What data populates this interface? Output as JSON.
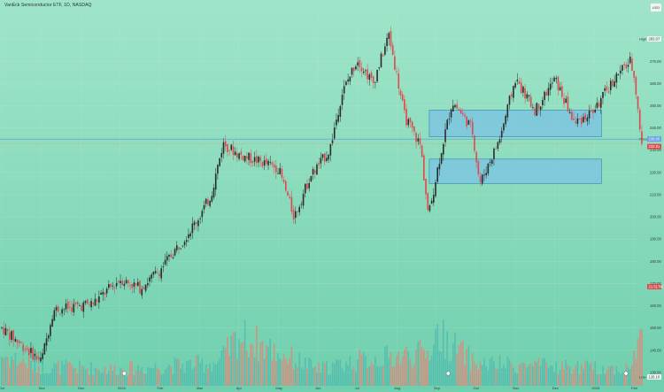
{
  "header": {
    "title": "VanEck Semiconductor ETF, 1D, NASDAQ",
    "currency": "USD"
  },
  "labels": {
    "high": "High",
    "low": "Low",
    "price": "Price"
  },
  "colors": {
    "up": "#2b2b2b",
    "down": "#e0484e",
    "vol_up": "#4cb8ad",
    "vol_down": "#ee7d73",
    "zone_fill": "#7cc6df",
    "zone_stroke": "#3b8fb8",
    "price_line": "#5b8fe0",
    "close_line": "#f08a4b",
    "grid": "#ffffff"
  },
  "chart_data": {
    "type": "candlestick",
    "y_ticks": [
      130,
      140,
      150,
      160,
      170,
      180,
      190,
      200,
      210,
      220,
      230,
      240,
      250,
      260,
      270,
      280
    ],
    "ylim": [
      124,
      292
    ],
    "x_tick_labels": [
      "Oct",
      "Nov",
      "Dec",
      "2024",
      "Feb",
      "Mar",
      "Apr",
      "May",
      "Jun",
      "Jul",
      "Aug",
      "Sep",
      "Oct",
      "Nov",
      "Dec",
      "2025",
      "Feb"
    ],
    "price_markers": {
      "high": 283.07,
      "price": 235.0,
      "last": 232.81,
      "low": 126.1,
      "volume": "21.517M"
    },
    "zones": [
      {
        "from": "Sep",
        "to": "2025",
        "low": 236,
        "high": 248
      },
      {
        "from": "Sep",
        "to": "2025",
        "low": 215,
        "high": 226
      }
    ],
    "path": [
      {
        "m": 0,
        "v": 150
      },
      {
        "m": 1.0,
        "v": 135
      },
      {
        "m": 1.3,
        "v": 158
      },
      {
        "m": 2.3,
        "v": 161
      },
      {
        "m": 3.0,
        "v": 172
      },
      {
        "m": 3.5,
        "v": 168
      },
      {
        "m": 4.0,
        "v": 176
      },
      {
        "m": 4.6,
        "v": 190
      },
      {
        "m": 5.0,
        "v": 200
      },
      {
        "m": 5.3,
        "v": 210
      },
      {
        "m": 5.6,
        "v": 233
      },
      {
        "m": 6.0,
        "v": 228
      },
      {
        "m": 6.5,
        "v": 225
      },
      {
        "m": 7.0,
        "v": 222
      },
      {
        "m": 7.4,
        "v": 200
      },
      {
        "m": 7.8,
        "v": 218
      },
      {
        "m": 8.3,
        "v": 230
      },
      {
        "m": 8.6,
        "v": 255
      },
      {
        "m": 9.0,
        "v": 271
      },
      {
        "m": 9.4,
        "v": 260
      },
      {
        "m": 9.8,
        "v": 282
      },
      {
        "m": 10.2,
        "v": 245
      },
      {
        "m": 10.6,
        "v": 232
      },
      {
        "m": 10.8,
        "v": 200
      },
      {
        "m": 11.1,
        "v": 228
      },
      {
        "m": 11.4,
        "v": 252
      },
      {
        "m": 11.9,
        "v": 240
      },
      {
        "m": 12.1,
        "v": 215
      },
      {
        "m": 12.6,
        "v": 235
      },
      {
        "m": 13.0,
        "v": 262
      },
      {
        "m": 13.5,
        "v": 248
      },
      {
        "m": 14.0,
        "v": 262
      },
      {
        "m": 14.5,
        "v": 242
      },
      {
        "m": 15.0,
        "v": 248
      },
      {
        "m": 15.5,
        "v": 262
      },
      {
        "m": 15.9,
        "v": 270
      },
      {
        "m": 16.0,
        "v": 265
      },
      {
        "m": 16.2,
        "v": 232
      }
    ],
    "volume_profile": [
      {
        "m": 0,
        "v": 0.55
      },
      {
        "m": 1,
        "v": 0.35
      },
      {
        "m": 3,
        "v": 0.3
      },
      {
        "m": 5.5,
        "v": 0.42
      },
      {
        "m": 6,
        "v": 0.9
      },
      {
        "m": 8,
        "v": 0.3
      },
      {
        "m": 9,
        "v": 0.45
      },
      {
        "m": 10.8,
        "v": 0.6
      },
      {
        "m": 11.0,
        "v": 0.95
      },
      {
        "m": 12,
        "v": 0.4
      },
      {
        "m": 14,
        "v": 0.35
      },
      {
        "m": 15.9,
        "v": 0.3
      },
      {
        "m": 16.2,
        "v": 1.0
      }
    ]
  }
}
